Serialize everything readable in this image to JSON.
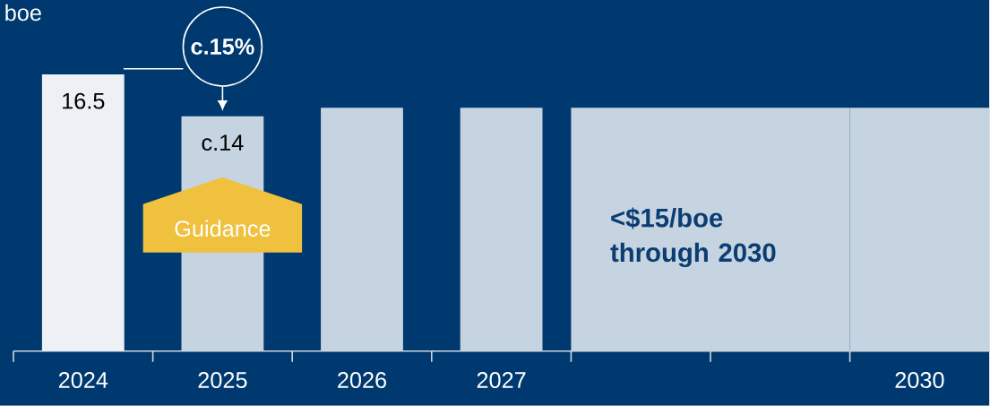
{
  "chart_data": {
    "type": "bar",
    "title": "boe",
    "categories": [
      "2024",
      "2025",
      "2026",
      "2027",
      null,
      null,
      "2030"
    ],
    "values": [
      16.5,
      14,
      14.5,
      14.5,
      14.5,
      14.5,
      14.5
    ],
    "colors": [
      "#edf1f5",
      "#c5d4e0",
      "#c5d4e0",
      "#c5d4e0",
      "#c5d4e0",
      "#c5d4e0",
      "#c5d4e0"
    ],
    "value_labels": [
      "16.5",
      "c.14",
      null,
      null,
      null,
      null,
      null
    ],
    "annotations": [
      "c.15%",
      "Guidance",
      "<$15/boe through 2030"
    ]
  }
}
